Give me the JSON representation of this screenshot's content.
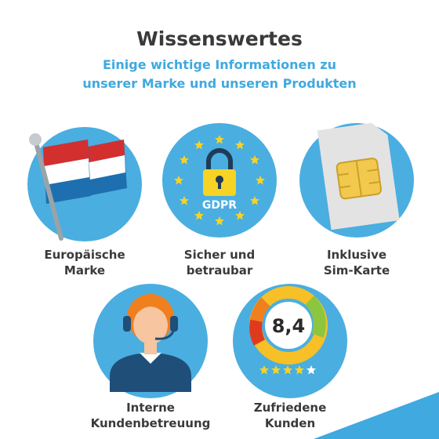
{
  "header": {
    "title": "Wissenswertes",
    "subtitle": [
      "Einige wichtige Informationen zu",
      "unserer Marke und unseren Produkten"
    ]
  },
  "items": [
    {
      "label": [
        "Europäische",
        "Marke"
      ]
    },
    {
      "label": [
        "Sicher und",
        "betraubar"
      ],
      "badge": "GDPR"
    },
    {
      "label": [
        "Inklusive",
        "Sim-Karte"
      ]
    },
    {
      "label": [
        "Interne",
        "Kundenbetreuung"
      ]
    },
    {
      "label": [
        "Zufriedene",
        "Kunden"
      ],
      "score": "8,4"
    }
  ]
}
